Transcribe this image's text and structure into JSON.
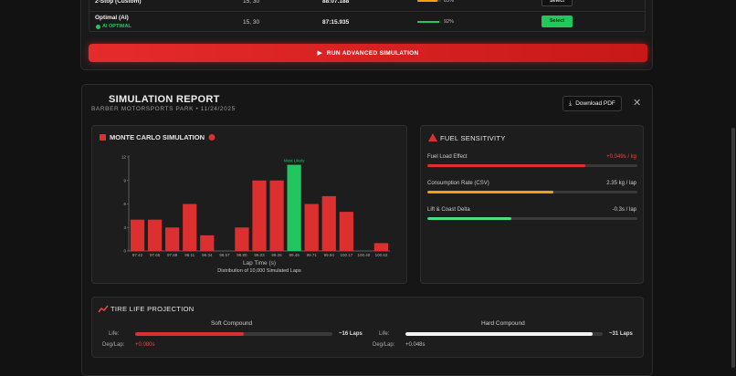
{
  "strategy_table": {
    "rows": [
      {
        "name": "2-Stop (Custom)",
        "laps": "15, 30",
        "time": "88:07.188",
        "progress": 85,
        "progress_label": "85%",
        "color": "#f59e0b",
        "action": "Select"
      },
      {
        "name": "Optimal (AI)",
        "badge": "AI OPTIMAL",
        "laps": "15, 30",
        "time": "87:15.935",
        "progress": 92,
        "progress_label": "92%",
        "color": "#22c55e",
        "action": "Select"
      }
    ],
    "run_button": "RUN ADVANCED SIMULATION"
  },
  "report": {
    "title": "SIMULATION REPORT",
    "subtitle": "BARBER MOTORSPORTS PARK • 11/24/2025",
    "download": "Download PDF"
  },
  "chart_data": {
    "type": "bar",
    "title": "MONTE CARLO SIMULATION",
    "categories": [
      "97.42",
      "97.65",
      "97.88",
      "98.11",
      "98.34",
      "98.57",
      "98.80",
      "99.03",
      "99.26",
      "99.49",
      "99.71",
      "99.94",
      "100.17",
      "100.40",
      "100.63"
    ],
    "values": [
      4,
      4,
      3,
      6,
      2,
      0,
      3,
      9,
      9,
      11,
      6,
      7,
      5,
      0,
      1
    ],
    "colors": [
      "#dc2f2f",
      "#dc2f2f",
      "#dc2f2f",
      "#dc2f2f",
      "#dc2f2f",
      "#dc2f2f",
      "#dc2f2f",
      "#dc2f2f",
      "#dc2f2f",
      "#22c55e",
      "#dc2f2f",
      "#dc2f2f",
      "#dc2f2f",
      "#dc2f2f",
      "#dc2f2f"
    ],
    "annotation": {
      "text": "Most Likely",
      "index": 9,
      "color": "#22c55e"
    },
    "x_label": "Lap Time (s)",
    "caption": "Distribution of 10,000 Simulated Laps",
    "ylim": [
      0,
      12
    ],
    "yticks": [
      0,
      3,
      6,
      9,
      12
    ],
    "grid": false
  },
  "fuel": {
    "title": "FUEL SENSITIVITY",
    "items": [
      {
        "label": "Fuel Load Effect",
        "value": "+0.049s / kg",
        "fill": 75,
        "color": "#dc2f2f",
        "value_color": "#ef4444"
      },
      {
        "label": "Consumption Rate (CSV)",
        "value": "2.35 kg / lap",
        "fill": 60,
        "color": "#f59e0b",
        "value_color": "#cfcfcf"
      },
      {
        "label": "Lift & Coast Delta",
        "value": "-0.3s / lap",
        "fill": 40,
        "color": "#4ade80",
        "value_color": "#cfcfcf"
      }
    ]
  },
  "tire": {
    "title": "TIRE LIFE PROJECTION",
    "life_label": "Life:",
    "deg_label": "Deg/Lap:",
    "compounds": [
      {
        "name": "Soft Compound",
        "fill": 55,
        "color": "#dc2f2f",
        "life": "~16 Laps",
        "deg": "+0.080s",
        "deg_color": "#ef4444"
      },
      {
        "name": "Hard Compound",
        "fill": 95,
        "color": "#f2f2f2",
        "life": "~31 Laps",
        "deg": "+0.048s",
        "deg_color": "#bdbdbd"
      }
    ]
  }
}
